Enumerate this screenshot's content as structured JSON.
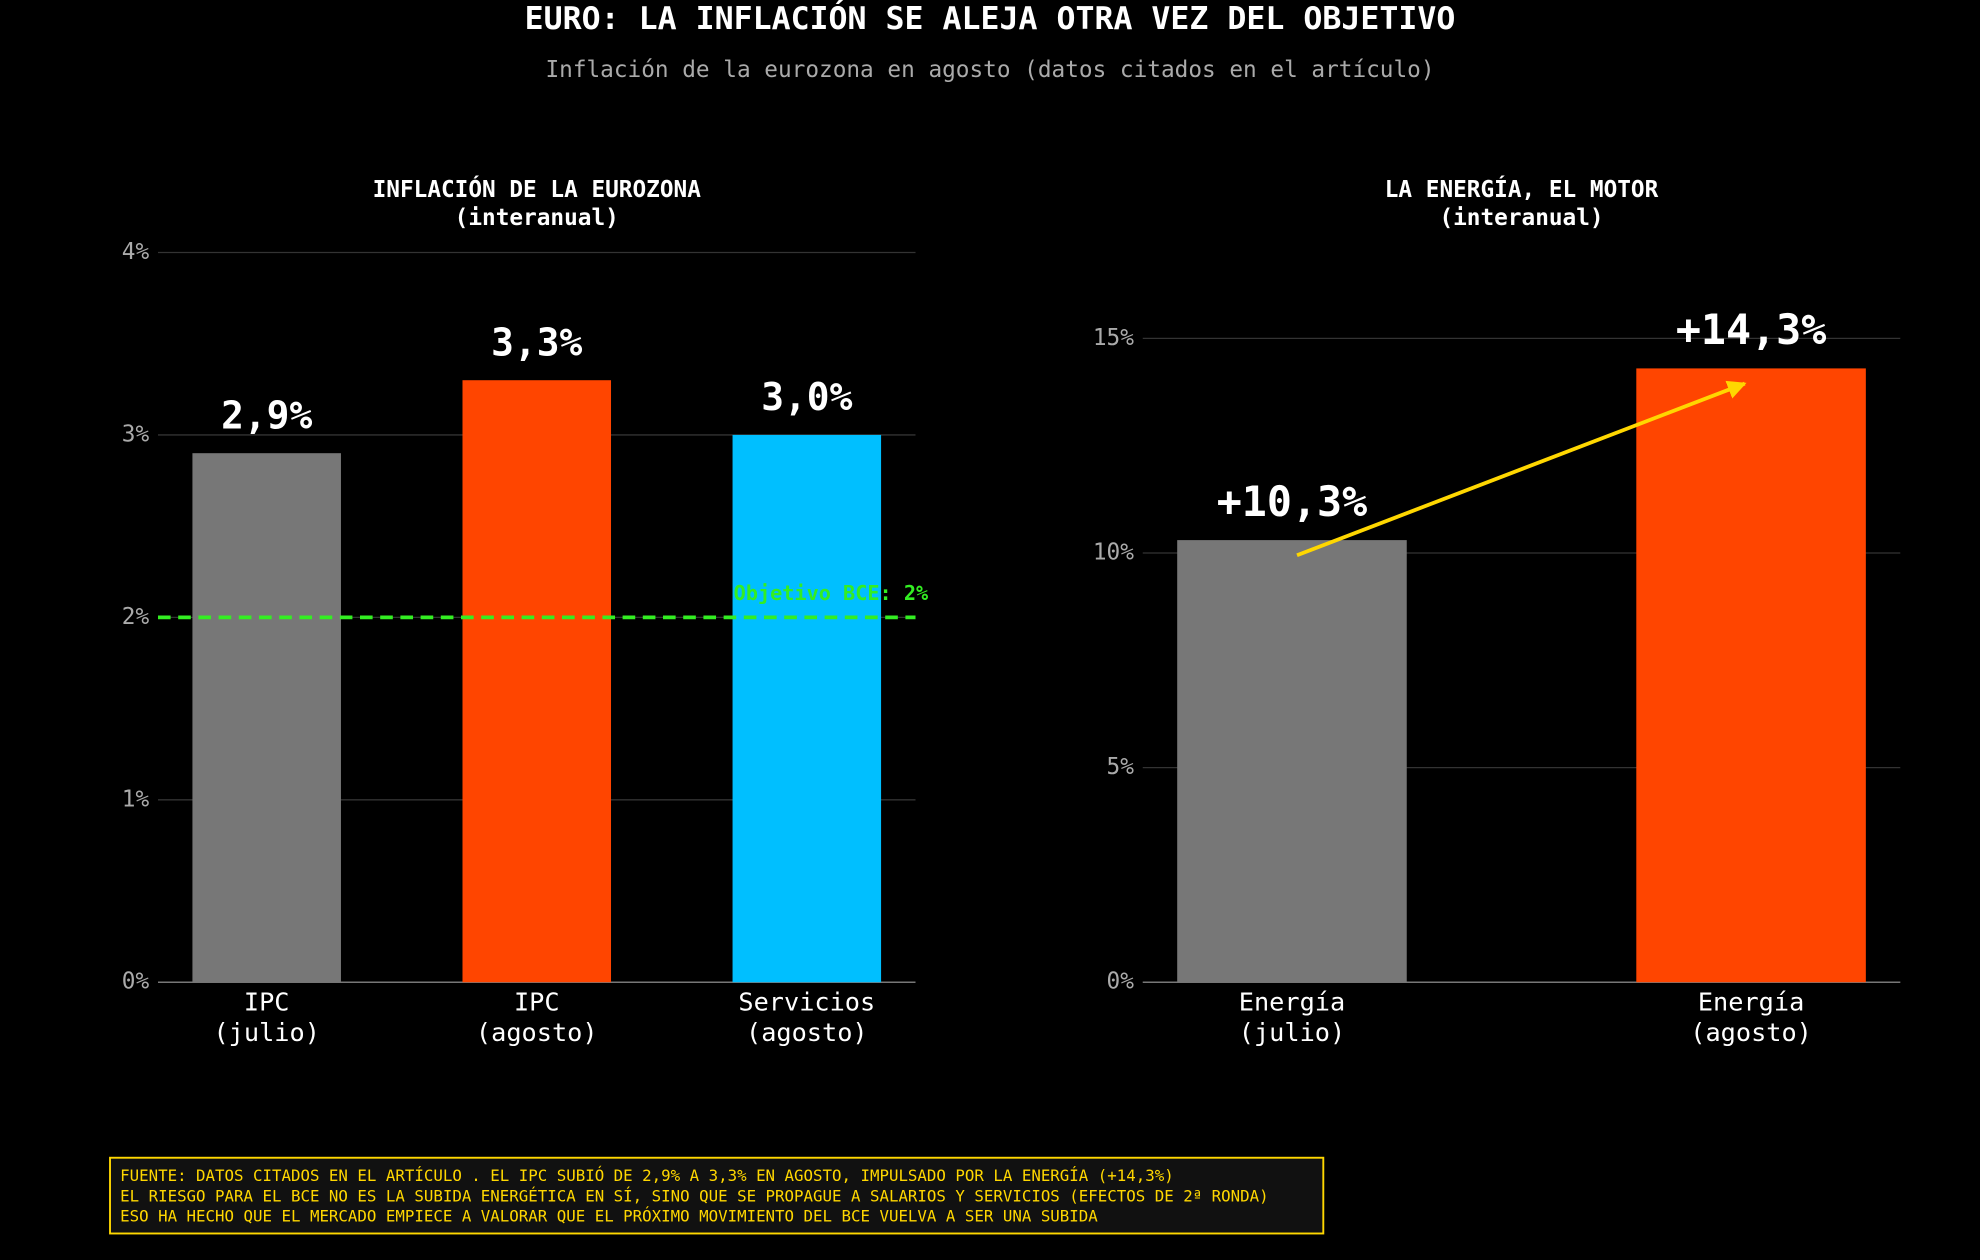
{
  "title": "EURO: LA INFLACIÓN SE ALEJA OTRA VEZ DEL OBJETIVO",
  "subtitle": "Inflación de la eurozona en agosto (datos citados en el artículo)",
  "chart_data": [
    {
      "type": "bar",
      "title": [
        "INFLACIÓN DE LA EUROZONA",
        "(interanual)"
      ],
      "categories": [
        [
          "IPC",
          "(julio)"
        ],
        [
          "IPC",
          "(agosto)"
        ],
        [
          "Servicios",
          "(agosto)"
        ]
      ],
      "values": [
        2.9,
        3.3,
        3.0
      ],
      "value_labels": [
        "2,9%",
        "3,3%",
        "3,0%"
      ],
      "colors": [
        "#777777",
        "#ff4500",
        "#00bfff"
      ],
      "ylim": [
        0,
        4
      ],
      "yticks": [
        {
          "value": 0,
          "label": "0%"
        },
        {
          "value": 1,
          "label": "1%"
        },
        {
          "value": 2,
          "label": "2%"
        },
        {
          "value": 3,
          "label": "3%"
        },
        {
          "value": 4,
          "label": "4%"
        }
      ],
      "grid": true,
      "reference_line": {
        "value": 2,
        "label": "Objetivo BCE: 2%",
        "color": "#33ee22"
      }
    },
    {
      "type": "bar",
      "title": [
        "LA ENERGÍA, EL MOTOR",
        "(interanual)"
      ],
      "categories": [
        [
          "Energía",
          "(julio)"
        ],
        [
          "Energía",
          "(agosto)"
        ]
      ],
      "values": [
        10.3,
        14.3
      ],
      "value_labels": [
        "+10,3%",
        "+14,3%"
      ],
      "colors": [
        "#777777",
        "#ff4500"
      ],
      "ylim": [
        0,
        17
      ],
      "yticks": [
        {
          "value": 0,
          "label": "0%"
        },
        {
          "value": 5,
          "label": "5%"
        },
        {
          "value": 10,
          "label": "10%"
        },
        {
          "value": 15,
          "label": "15%"
        }
      ],
      "grid": true,
      "trend_arrow_color": "#ffd700"
    }
  ],
  "footer": [
    "FUENTE: DATOS CITADOS EN EL ARTÍCULO . EL IPC SUBIÓ DE 2,9% A 3,3% EN AGOSTO, IMPULSADO POR LA ENERGÍA (+14,3%)",
    "EL RIESGO PARA EL BCE NO ES LA SUBIDA ENERGÉTICA EN SÍ, SINO QUE SE PROPAGUE A SALARIOS Y SERVICIOS (EFECTOS DE 2ª RONDA)",
    "ESO HA HECHO QUE EL MERCADO EMPIECE A VALORAR QUE EL PRÓXIMO MOVIMIENTO DEL BCE VUELVA A SER UNA SUBIDA"
  ]
}
